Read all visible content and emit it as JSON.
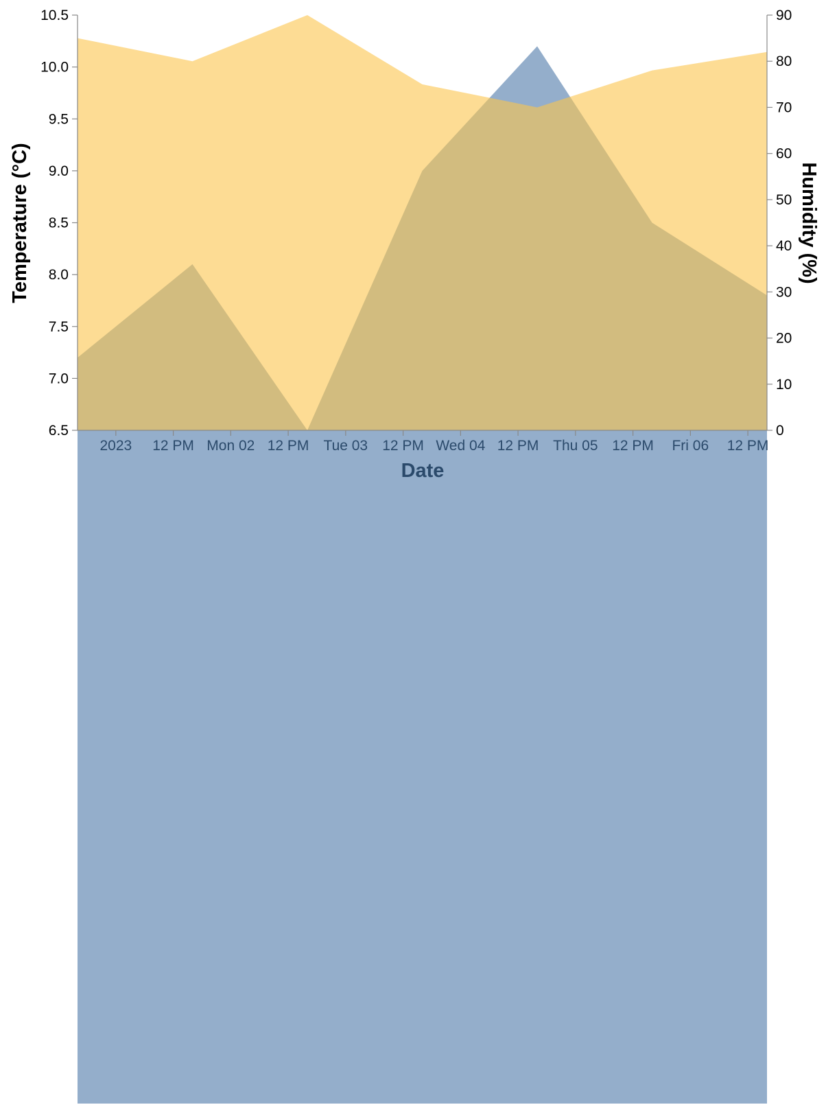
{
  "chart_data": {
    "type": "area",
    "title": "",
    "xlabel": "Date",
    "ylabel_left": "Temperature (°C)",
    "ylabel_right": "Humidity (%)",
    "x": [
      "2023-01-01",
      "2023-01-02",
      "2023-01-03",
      "2023-01-04",
      "2023-01-05",
      "2023-01-06",
      "2023-01-07"
    ],
    "series": [
      {
        "name": "Temperature (°C)",
        "axis": "left",
        "color": "#4c78a8",
        "opacity": 0.6,
        "points": [
          {
            "x": "2023-01-01T00:00",
            "y": 7.2
          },
          {
            "x": "2023-01-02T00:00",
            "y": 8.1
          },
          {
            "x": "2023-01-03T00:00",
            "y": 6.5
          },
          {
            "x": "2023-01-04T00:00",
            "y": 9.0
          },
          {
            "x": "2023-01-05T00:00",
            "y": 10.2
          },
          {
            "x": "2023-01-06T00:00",
            "y": 8.5
          },
          {
            "x": "2023-01-07T00:00",
            "y": 7.8
          }
        ]
      },
      {
        "name": "Humidity (%)",
        "axis": "right",
        "color": "#fcc44c",
        "opacity": 0.6,
        "points": [
          {
            "x": "2023-01-01T00:00",
            "y": 85
          },
          {
            "x": "2023-01-02T00:00",
            "y": 80
          },
          {
            "x": "2023-01-03T00:00",
            "y": 90
          },
          {
            "x": "2023-01-04T00:00",
            "y": 75
          },
          {
            "x": "2023-01-05T00:00",
            "y": 70
          },
          {
            "x": "2023-01-06T00:00",
            "y": 78
          },
          {
            "x": "2023-01-07T00:00",
            "y": 82
          }
        ]
      }
    ],
    "x_domain": [
      "2023-01-01T00:00",
      "2023-01-07T00:00"
    ],
    "ylim_left": [
      6.5,
      10.5
    ],
    "ylim_right": [
      0,
      90
    ],
    "left_ticks": [
      "6.5",
      "7.0",
      "7.5",
      "8.0",
      "8.5",
      "9.0",
      "9.5",
      "10.0",
      "10.5"
    ],
    "right_ticks": [
      "0",
      "10",
      "20",
      "30",
      "40",
      "50",
      "60",
      "70",
      "80",
      "90"
    ],
    "x_ticks": [
      {
        "x": "2023-01-01T08:00",
        "label": "2023"
      },
      {
        "x": "2023-01-01T20:00",
        "label": "12 PM"
      },
      {
        "x": "2023-01-02T08:00",
        "label": "Mon 02"
      },
      {
        "x": "2023-01-02T20:00",
        "label": "12 PM"
      },
      {
        "x": "2023-01-03T08:00",
        "label": "Tue 03"
      },
      {
        "x": "2023-01-03T20:00",
        "label": "12 PM"
      },
      {
        "x": "2023-01-04T08:00",
        "label": "Wed 04"
      },
      {
        "x": "2023-01-04T20:00",
        "label": "12 PM"
      },
      {
        "x": "2023-01-05T08:00",
        "label": "Thu 05"
      },
      {
        "x": "2023-01-05T20:00",
        "label": "12 PM"
      },
      {
        "x": "2023-01-06T08:00",
        "label": "Fri 06"
      },
      {
        "x": "2023-01-06T20:00",
        "label": "12 PM"
      }
    ],
    "grid": false,
    "legend": "none"
  }
}
